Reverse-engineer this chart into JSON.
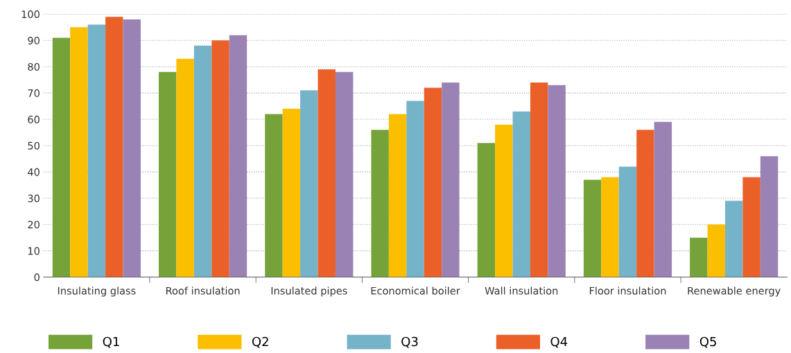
{
  "chart_data": {
    "type": "bar",
    "categories": [
      "Insulating glass",
      "Roof insulation",
      "Insulated pipes",
      "Economical boiler",
      "Wall insulation",
      "Floor insulation",
      "Renewable energy"
    ],
    "series": [
      {
        "name": "Q1",
        "color": "#76a23a",
        "values": [
          91,
          78,
          62,
          56,
          51,
          37,
          15
        ]
      },
      {
        "name": "Q2",
        "color": "#fbbf00",
        "values": [
          95,
          83,
          64,
          62,
          58,
          38,
          20
        ]
      },
      {
        "name": "Q3",
        "color": "#75b3c8",
        "values": [
          96,
          88,
          71,
          67,
          63,
          42,
          29
        ]
      },
      {
        "name": "Q4",
        "color": "#eb6028",
        "values": [
          99,
          90,
          79,
          72,
          74,
          56,
          38
        ]
      },
      {
        "name": "Q5",
        "color": "#9b82b4",
        "values": [
          98,
          92,
          78,
          74,
          73,
          59,
          46
        ]
      }
    ],
    "ylim": [
      0,
      100
    ],
    "yticks": [
      0,
      10,
      20,
      30,
      40,
      50,
      60,
      70,
      80,
      90,
      100
    ],
    "grid": "y",
    "legend": "bottom"
  }
}
